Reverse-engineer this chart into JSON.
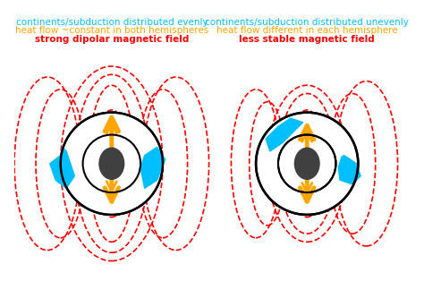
{
  "bg_color": "#ffffff",
  "left_title_line1": "continents/subduction distributed evenly",
  "left_title_line2": "heat flow ~constant in both hemispheres",
  "left_title_line3": "strong dipolar magnetic field",
  "right_title_line1": "continents/subduction distributed unevenly",
  "right_title_line2": "heat flow different in each hemisphere",
  "right_title_line3": "less stable magnetic field",
  "cyan_color": "#00bfff",
  "orange_color": "#ffa500",
  "red_color": "#ff0000",
  "dark_gray": "#404040",
  "line1_color": "#00bfff",
  "line2_color": "#ffa500",
  "line3_color": "#ff0000",
  "dashed_color": "#ff0000"
}
